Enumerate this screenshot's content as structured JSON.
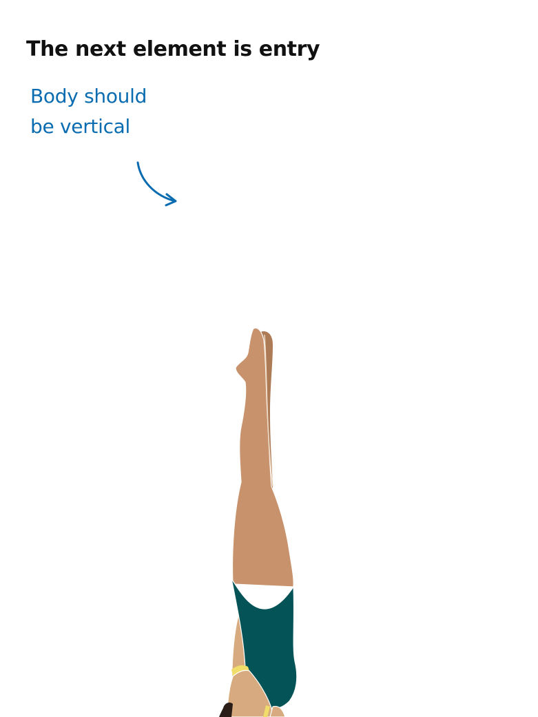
{
  "heading": "The next element is entry",
  "annotation": {
    "line1": "Body should",
    "line2": "be vertical",
    "color": "#0a6cb0"
  },
  "colors": {
    "skin": "#c8936c",
    "skin_shadow": "#ad7b56",
    "skin_light": "#d7ab7f",
    "swimsuit": "#045357",
    "swimsuit_trim": "#f1dd6a",
    "hair": "#2a1d17"
  },
  "illustration": {
    "subject": "diver-entering-water",
    "pose": "vertical-head-down"
  }
}
